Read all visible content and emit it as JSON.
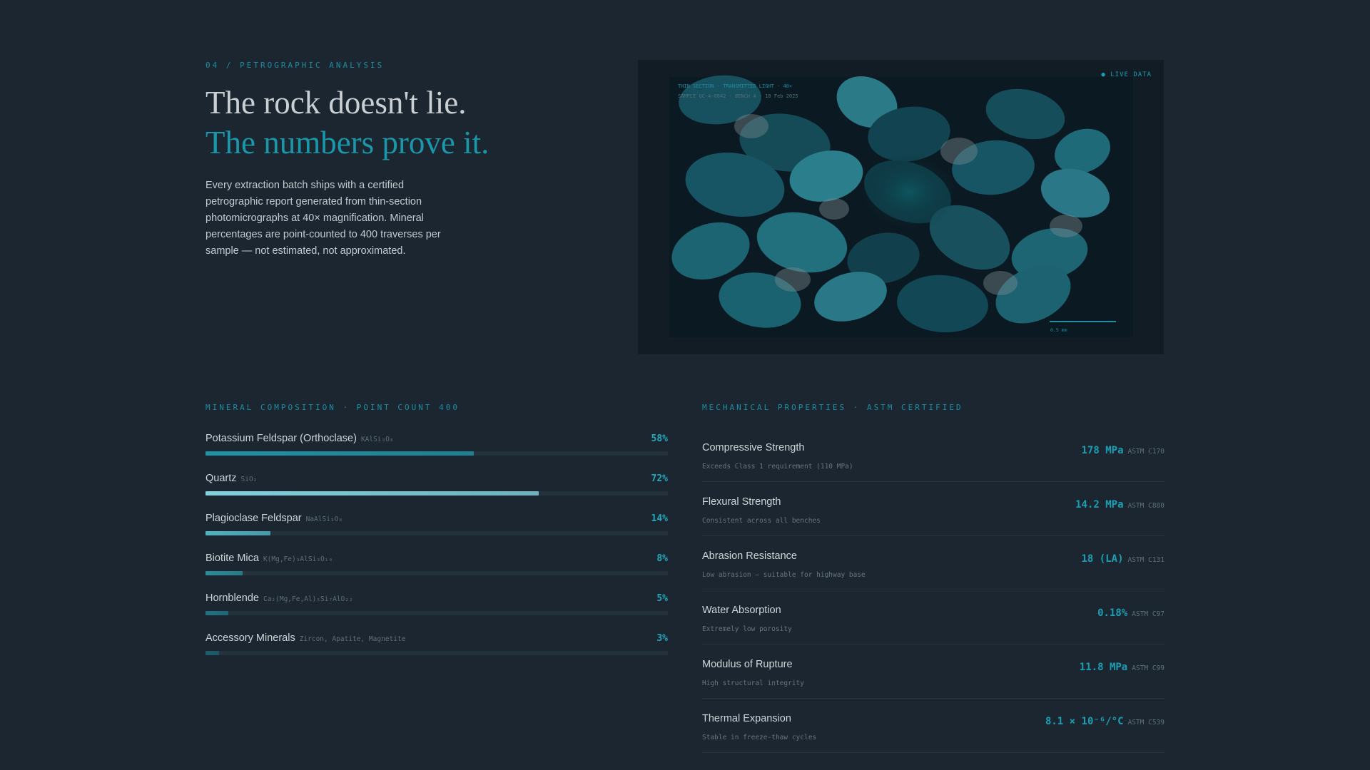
{
  "hero": {
    "eyebrow": "04 / PETROGRAPHIC ANALYSIS",
    "headline_line1": "The rock doesn't lie.",
    "headline_line2": "The numbers prove it.",
    "intro": "Every extraction batch ships with a certified petrographic report generated from thin-section photomicrographs at 40× magnification. Mineral percentages are point-counted to 400 traverses per sample — not estimated, not approximated."
  },
  "micrograph": {
    "live_label": "● LIVE DATA",
    "caption_line1": "THIN SECTION · TRANSMITTED LIGHT · 40×",
    "caption_line2": "SAMPLE QC-4-0842 · BENCH 4 · 18 Feb 2025",
    "scale_label": "0.5 mm"
  },
  "minerals": {
    "title": "MINERAL COMPOSITION · POINT COUNT 400",
    "items": [
      {
        "name": "Potassium Feldspar (Orthoclase)",
        "formula": "KAlSi₃O₈",
        "percent_label": "58%",
        "value": 58,
        "color": "#1e93a6"
      },
      {
        "name": "Quartz",
        "formula": "SiO₂",
        "percent_label": "72%",
        "value": 72,
        "color": "#7fd3dd"
      },
      {
        "name": "Plagioclase Feldspar",
        "formula": "NaAlSi₃O₈",
        "percent_label": "14%",
        "value": 14,
        "color": "#4fb3c2"
      },
      {
        "name": "Biotite Mica",
        "formula": "K(Mg,Fe)₃AlSi₃O₁₀",
        "percent_label": "8%",
        "value": 8,
        "color": "#2a8c9b"
      },
      {
        "name": "Hornblende",
        "formula": "Ca₂(Mg,Fe,Al)₅Si₇AlO₂₂",
        "percent_label": "5%",
        "value": 5,
        "color": "#1f7482"
      },
      {
        "name": "Accessory Minerals",
        "formula": "Zircon, Apatite, Magnetite",
        "percent_label": "3%",
        "value": 3,
        "color": "#1b5f6b"
      }
    ]
  },
  "properties": {
    "title": "MECHANICAL PROPERTIES · ASTM CERTIFIED",
    "items": [
      {
        "name": "Compressive Strength",
        "desc": "Exceeds Class 1 requirement (110 MPa)",
        "value": "178 MPa",
        "standard": "ASTM C170"
      },
      {
        "name": "Flexural Strength",
        "desc": "Consistent across all benches",
        "value": "14.2 MPa",
        "standard": "ASTM C880"
      },
      {
        "name": "Abrasion Resistance",
        "desc": "Low abrasion — suitable for highway base",
        "value": "18 (LA)",
        "standard": "ASTM C131"
      },
      {
        "name": "Water Absorption",
        "desc": "Extremely low porosity",
        "value": "0.18%",
        "standard": "ASTM C97"
      },
      {
        "name": "Modulus of Rupture",
        "desc": "High structural integrity",
        "value": "11.8 MPa",
        "standard": "ASTM C99"
      },
      {
        "name": "Thermal Expansion",
        "desc": "Stable in freeze-thaw cycles",
        "value": "8.1 × 10⁻⁶/°C",
        "standard": "ASTM C539"
      }
    ]
  }
}
